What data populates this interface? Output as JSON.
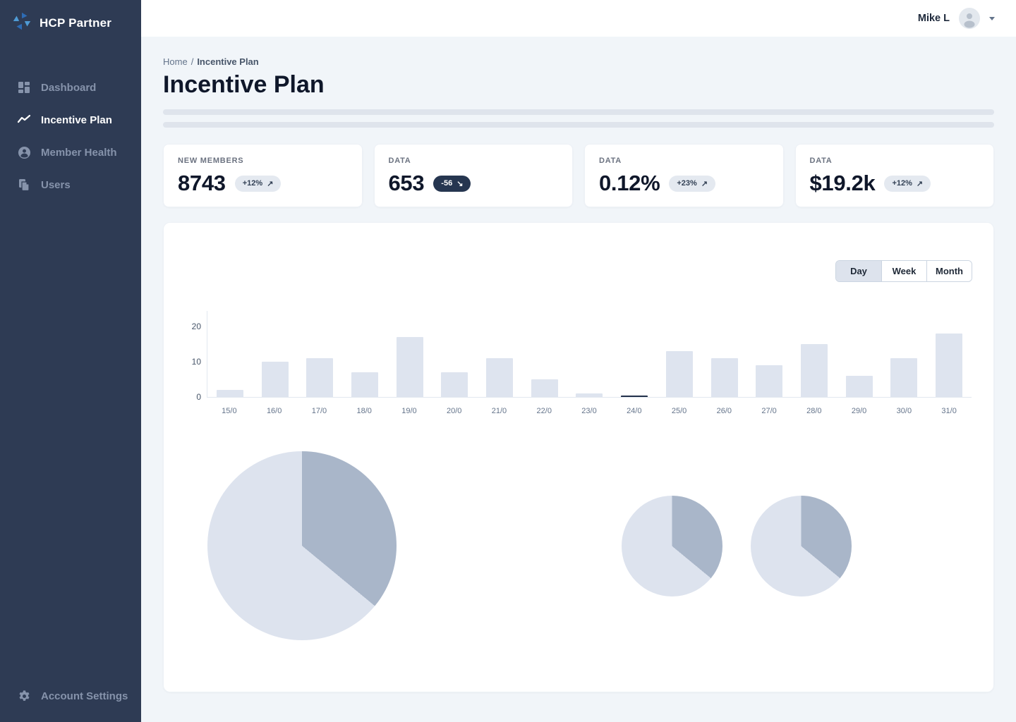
{
  "app": {
    "brand": "HCP Partner"
  },
  "header": {
    "user_name": "Mike L"
  },
  "sidebar": {
    "items": [
      {
        "label": "Dashboard",
        "icon": "dashboard-grid-icon",
        "active": false
      },
      {
        "label": "Incentive Plan",
        "icon": "trend-line-icon",
        "active": true
      },
      {
        "label": "Member Health",
        "icon": "person-circle-icon",
        "active": false
      },
      {
        "label": "Users",
        "icon": "documents-icon",
        "active": false
      }
    ],
    "footer": {
      "label": "Account Settings",
      "icon": "gear-icon"
    }
  },
  "breadcrumb": {
    "home": "Home",
    "separator": "/",
    "current": "Incentive Plan"
  },
  "page": {
    "title": "Incentive Plan"
  },
  "stats": [
    {
      "label": "NEW MEMBERS",
      "value": "8743",
      "badge": "+12%",
      "arrow": "↗",
      "variant": "light"
    },
    {
      "label": "DATA",
      "value": "653",
      "badge": "-56",
      "arrow": "↘",
      "variant": "dark"
    },
    {
      "label": "DATA",
      "value": "0.12%",
      "badge": "+23%",
      "arrow": "↗",
      "variant": "light"
    },
    {
      "label": "DATA",
      "value": "$19.2k",
      "badge": "+12%",
      "arrow": "↗",
      "variant": "light"
    }
  ],
  "chart_controls": {
    "options": [
      "Day",
      "Week",
      "Month"
    ],
    "selected": "Day"
  },
  "chart_data": [
    {
      "type": "bar",
      "title": "",
      "categories": [
        "15/0",
        "16/0",
        "17/0",
        "18/0",
        "19/0",
        "20/0",
        "21/0",
        "22/0",
        "23/0",
        "24/0",
        "25/0",
        "26/0",
        "27/0",
        "28/0",
        "29/0",
        "30/0",
        "31/0"
      ],
      "values": [
        2,
        10,
        11,
        7,
        17,
        7,
        11,
        5,
        1,
        0,
        13,
        11,
        9,
        15,
        6,
        11,
        18
      ],
      "xlabel": "",
      "ylabel": "",
      "ylim": [
        0,
        20
      ],
      "yticks": [
        0,
        10,
        20
      ],
      "grid": false,
      "legend": false,
      "bar_color": "#dee4ef",
      "zero_marker_index": 9,
      "zero_marker_color": "#22304a"
    },
    {
      "type": "pie",
      "size": "large",
      "values": [
        36,
        64
      ],
      "labels": [
        "",
        ""
      ],
      "colors": [
        "#a9b6c9",
        "#dde3ee"
      ],
      "start_angle": "top-clockwise"
    },
    {
      "type": "pie",
      "size": "small",
      "values": [
        36,
        64
      ],
      "labels": [
        "",
        ""
      ],
      "colors": [
        "#a9b6c9",
        "#dde3ee"
      ],
      "start_angle": "top-clockwise"
    },
    {
      "type": "pie",
      "size": "small",
      "values": [
        36,
        64
      ],
      "labels": [
        "",
        ""
      ],
      "colors": [
        "#a9b6c9",
        "#dde3ee"
      ],
      "start_angle": "top-clockwise"
    }
  ],
  "colors": {
    "sidebar_bg": "#2e3b54",
    "content_bg": "#f1f5f9",
    "card_bg": "#ffffff",
    "accent_blue_light": "#4f9bd5",
    "accent_blue_dark": "#2e6cb5",
    "badge_dark_bg": "#263650",
    "bar_fill": "#dee4ef",
    "pie_dark": "#a9b6c9",
    "pie_light": "#dde3ee"
  }
}
